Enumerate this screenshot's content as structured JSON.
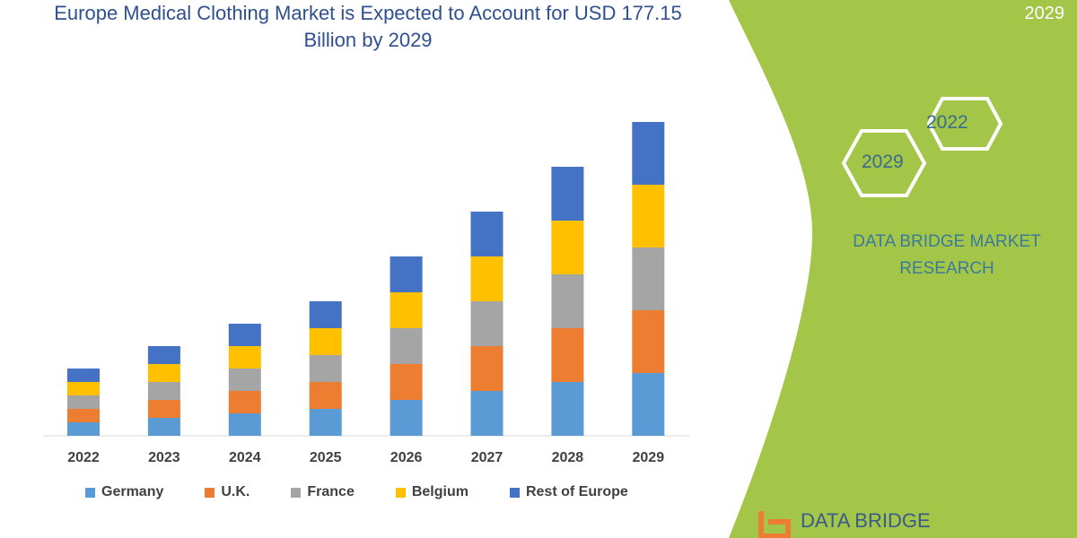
{
  "title": "Europe Medical Clothing Market is Expected to Account for USD 177.15 Billion by 2029",
  "side_panel": {
    "corner_year": "2029",
    "hex_years": [
      "2022",
      "2029"
    ],
    "brand_text": "DATA BRIDGE MARKET RESEARCH",
    "logo_text": "DATA BRIDGE",
    "panel_color": "#a3c649"
  },
  "chart_data": {
    "type": "bar",
    "stacked": true,
    "title": "Europe Medical Clothing Market is Expected to Account for USD 177.15 Billion by 2029",
    "categories": [
      "2022",
      "2023",
      "2024",
      "2025",
      "2026",
      "2027",
      "2028",
      "2029"
    ],
    "series": [
      {
        "name": "Germany",
        "color": "#5b9bd5",
        "values": [
          3,
          4,
          5,
          6,
          8,
          10,
          12,
          14
        ]
      },
      {
        "name": "U.K.",
        "color": "#ed7d31",
        "values": [
          3,
          4,
          5,
          6,
          8,
          10,
          12,
          14
        ]
      },
      {
        "name": "France",
        "color": "#a5a5a5",
        "values": [
          3,
          4,
          5,
          6,
          8,
          10,
          12,
          14
        ]
      },
      {
        "name": "Belgium",
        "color": "#ffc000",
        "values": [
          3,
          4,
          5,
          6,
          8,
          10,
          12,
          14
        ]
      },
      {
        "name": "Rest of Europe",
        "color": "#4472c4",
        "values": [
          3,
          4,
          5,
          6,
          8,
          10,
          12,
          14
        ]
      }
    ],
    "xlabel": "",
    "ylabel": "",
    "y_axis_shown": false,
    "grid": false,
    "legend": "bottom"
  }
}
